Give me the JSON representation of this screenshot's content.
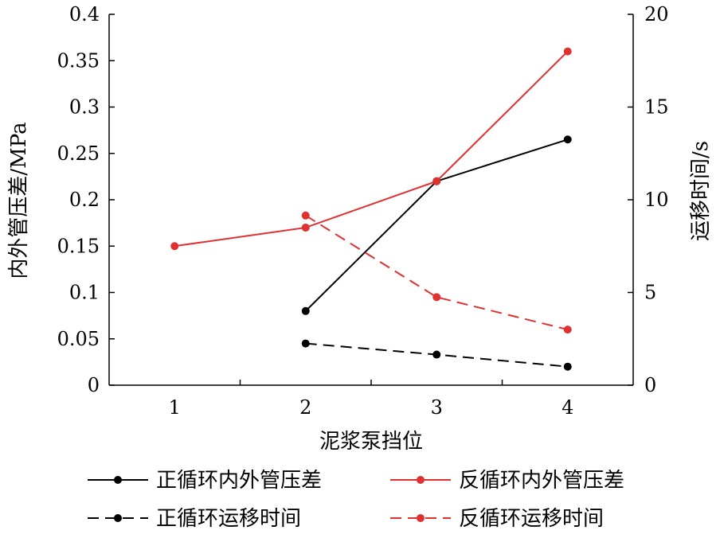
{
  "chart_data": {
    "type": "line",
    "xlabel": "泥浆泵挡位",
    "ylabel_left": "内外管压差/MPa",
    "ylabel_right": "运移时间/s",
    "x_ticks": [
      "1",
      "2",
      "3",
      "4"
    ],
    "y_left_ticks": [
      "0",
      "0.05",
      "0.1",
      "0.15",
      "0.2",
      "0.25",
      "0.3",
      "0.35",
      "0.4"
    ],
    "y_right_ticks": [
      "0",
      "5",
      "10",
      "15",
      "20"
    ],
    "y_left_lim": [
      0,
      0.4
    ],
    "y_right_lim": [
      0,
      20
    ],
    "x_lim": [
      0.5,
      4.5
    ],
    "legend_position": "bottom",
    "series": [
      {
        "name": "正循环内外管压差",
        "axis": "left",
        "color": "#000000",
        "dash": false,
        "x": [
          2,
          3,
          4
        ],
        "y": [
          0.08,
          0.22,
          0.265
        ]
      },
      {
        "name": "反循环内外管压差",
        "axis": "left",
        "color": "#e03030",
        "dash": false,
        "x": [
          1,
          2,
          3,
          4
        ],
        "y": [
          0.15,
          0.17,
          0.22,
          0.36
        ]
      },
      {
        "name": "正循环运移时间",
        "axis": "right",
        "color": "#000000",
        "dash": true,
        "x": [
          2,
          3,
          4
        ],
        "y": [
          2.25,
          1.65,
          1.0
        ]
      },
      {
        "name": "反循环运移时间",
        "axis": "right",
        "color": "#e03030",
        "dash": true,
        "x": [
          2,
          3,
          4
        ],
        "y": [
          9.15,
          4.75,
          3.0
        ]
      }
    ]
  }
}
